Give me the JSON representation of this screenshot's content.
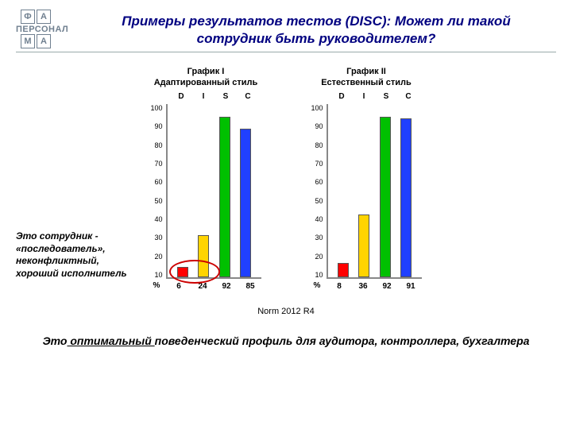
{
  "logo": {
    "letters": [
      "Ф",
      "А",
      "М",
      "А"
    ],
    "word": "ПЕРСОНАЛ"
  },
  "title": "Примеры результатов тестов (DISC): Может ли такой сотрудник быть руководителем?",
  "charts": {
    "ylim": [
      0,
      100
    ],
    "yticks": [
      100,
      90,
      80,
      70,
      60,
      50,
      40,
      30,
      20,
      10
    ],
    "disc_labels": [
      "D",
      "I",
      "S",
      "C"
    ],
    "bar_colors": {
      "D": "#ff0000",
      "I": "#ffd400",
      "S": "#00c000",
      "C": "#2040ff"
    },
    "border_color": "#888888",
    "chart1": {
      "label": "График I",
      "subtitle": "Адаптированный стиль",
      "values": {
        "D": 6,
        "I": 24,
        "S": 92,
        "C": 85
      },
      "circle": true
    },
    "chart2": {
      "label": "График II",
      "subtitle": "Естественный стиль",
      "values": {
        "D": 8,
        "I": 36,
        "S": 92,
        "C": 91
      },
      "circle": false
    },
    "percent_label": "%",
    "norm_text": "Norm 2012 R4"
  },
  "side_text": "Это сотрудник - «последователь», неконфликтный, хороший исполнитель",
  "bottom_text": {
    "pre": "Это",
    "highlight": " оптимальный ",
    "post": "поведенческий профиль для аудитора, контроллера, бухгалтера"
  }
}
